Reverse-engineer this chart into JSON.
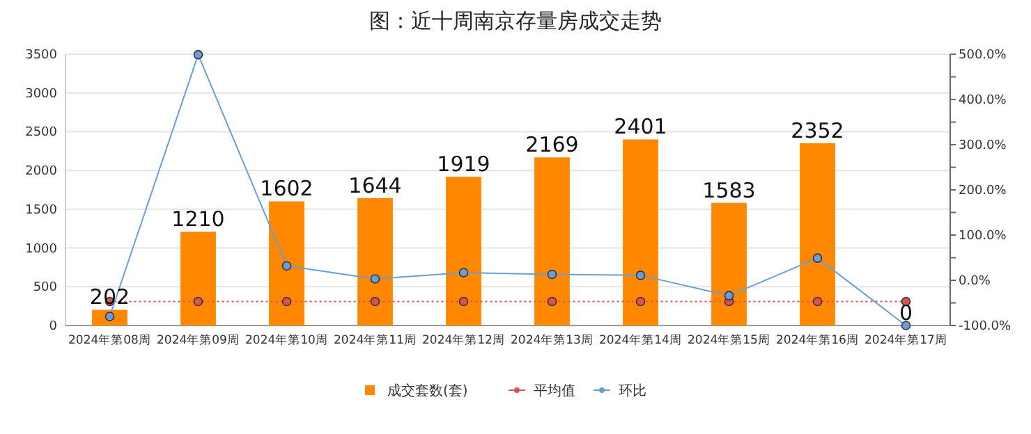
{
  "chart_data": {
    "type": "bar",
    "title": "图：近十周南京存量房成交走势",
    "categories": [
      "2024年第08周",
      "2024年第09周",
      "2024年第10周",
      "2024年第11周",
      "2024年第12周",
      "2024年第13周",
      "2024年第14周",
      "2024年第15周",
      "2024年第16周",
      "2024年第17周"
    ],
    "series": [
      {
        "name": "成交套数(套)",
        "color": "#ff8800",
        "values": [
          202,
          1210,
          1602,
          1644,
          1919,
          2169,
          2401,
          1583,
          2352,
          0
        ],
        "value_labels": [
          "202",
          "1210",
          "1602",
          "1644",
          "1919",
          "2169",
          "2401",
          "1583",
          "2352",
          "0"
        ]
      },
      {
        "name": "平均值",
        "type": "line",
        "color": "#d9534f",
        "line_style": "dotted",
        "marker": "circle",
        "values": [
          310,
          310,
          310,
          310,
          310,
          310,
          310,
          310,
          310,
          310
        ]
      },
      {
        "name": "环比",
        "type": "line",
        "axis": "y2",
        "color": "#6a9fd4",
        "line_style": "solid",
        "marker": "circle",
        "values": [
          -80,
          499,
          32,
          3,
          17,
          13,
          11,
          -34,
          49,
          -100
        ]
      }
    ],
    "ylim": [
      0,
      3500
    ],
    "yticks": [
      0,
      500,
      1000,
      1500,
      2000,
      2500,
      3000,
      3500
    ],
    "y2lim": [
      -100,
      500
    ],
    "y2ticks": [
      {
        "value": -100,
        "label": "-100.0%"
      },
      {
        "value": -50,
        "label": null
      },
      {
        "value": 0,
        "label": "0.0%"
      },
      {
        "value": 50,
        "label": null
      },
      {
        "value": 100,
        "label": "100.0%"
      },
      {
        "value": 150,
        "label": null
      },
      {
        "value": 200,
        "label": "200.0%"
      },
      {
        "value": 250,
        "label": null
      },
      {
        "value": 300,
        "label": "300.0%"
      },
      {
        "value": 350,
        "label": null
      },
      {
        "value": 400,
        "label": "400.0%"
      },
      {
        "value": 450,
        "label": null
      },
      {
        "value": 500,
        "label": "500.0%"
      }
    ],
    "grid": "y",
    "legend": "bottom"
  }
}
